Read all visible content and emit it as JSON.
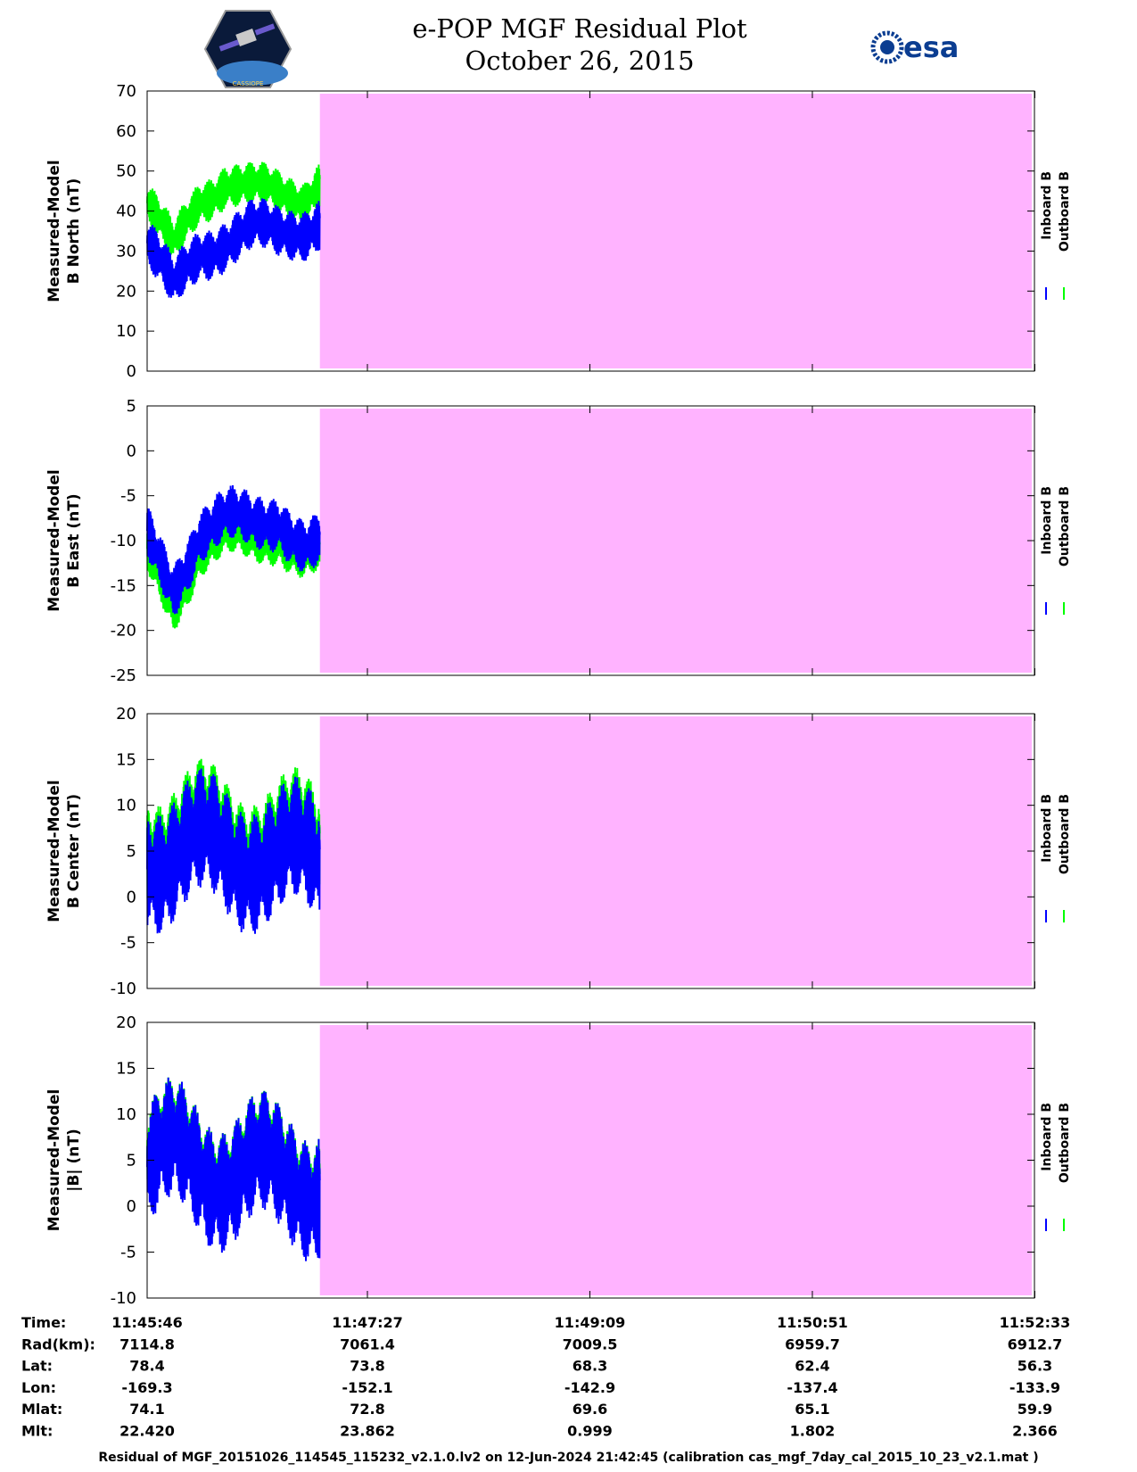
{
  "header": {
    "title_line1": "e-POP MGF Residual Plot",
    "title_line2": "October 26, 2015",
    "logo_left_text": "CASSIOPE",
    "logo_right_text": "esa"
  },
  "colors": {
    "inboard": "#0000ff",
    "outboard": "#00ff00",
    "no_data_fill": "#ffb3ff"
  },
  "chart_data": [
    {
      "type": "line",
      "name": "b-north",
      "ylabel_line1": "Measured-Model",
      "ylabel_line2": "B North (nT)",
      "ylim": [
        0,
        70
      ],
      "yticks": [
        0,
        10,
        20,
        30,
        40,
        50,
        60,
        70
      ],
      "legend": [
        "Inboard B",
        "Outboard B"
      ],
      "series": [
        {
          "name": "Inboard B",
          "x_min": [
            0,
            0.2,
            0.4,
            0.6,
            0.8,
            1.0,
            1.2,
            1.3
          ],
          "values": [
            32,
            20,
            30,
            33,
            35,
            34,
            36,
            38
          ]
        },
        {
          "name": "Outboard B",
          "x_min": [
            0,
            0.2,
            0.4,
            0.6,
            0.8,
            1.0,
            1.2,
            1.3
          ],
          "values": [
            42,
            30,
            43,
            48,
            45,
            44,
            44,
            48
          ]
        }
      ]
    },
    {
      "type": "line",
      "name": "b-east",
      "ylabel_line1": "Measured-Model",
      "ylabel_line2": "B East (nT)",
      "ylim": [
        -25,
        5
      ],
      "yticks": [
        -25,
        -20,
        -15,
        -10,
        -5,
        0,
        5
      ],
      "legend": [
        "Inboard B",
        "Outboard B"
      ],
      "series": [
        {
          "name": "Inboard B",
          "x_min": [
            0,
            0.2,
            0.4,
            0.6,
            0.8,
            1.0,
            1.2,
            1.3
          ],
          "values": [
            -10,
            -15,
            -9,
            -8,
            -8,
            -7,
            -11,
            -11
          ]
        },
        {
          "name": "Outboard B",
          "x_min": [
            0,
            0.2,
            0.4,
            0.6,
            0.8,
            1.0,
            1.2,
            1.3
          ],
          "values": [
            -12,
            -17,
            -11,
            -10,
            -10,
            -9,
            -12,
            -12
          ]
        }
      ]
    },
    {
      "type": "line",
      "name": "b-center",
      "ylabel_line1": "Measured-Model",
      "ylabel_line2": "B Center (nT)",
      "ylim": [
        -10,
        20
      ],
      "yticks": [
        -10,
        -5,
        0,
        5,
        10,
        15,
        20
      ],
      "legend": [
        "Inboard B",
        "Outboard B"
      ],
      "series": [
        {
          "name": "Inboard B",
          "x_min": [
            0,
            0.2,
            0.4,
            0.6,
            0.8,
            1.0,
            1.2,
            1.3
          ],
          "values": [
            5,
            5,
            5,
            5,
            5,
            4,
            4,
            4
          ]
        },
        {
          "name": "Outboard B",
          "x_min": [
            0,
            0.2,
            0.4,
            0.6,
            0.8,
            1.0,
            1.2,
            1.3
          ],
          "values": [
            7,
            7,
            7,
            7,
            7,
            6,
            6,
            6
          ]
        }
      ]
    },
    {
      "type": "line",
      "name": "b-total",
      "ylabel_line1": "Measured-Model",
      "ylabel_line2": "|B| (nT)",
      "ylim": [
        -10,
        20
      ],
      "yticks": [
        -10,
        -5,
        0,
        5,
        10,
        15,
        20
      ],
      "legend": [
        "Inboard B",
        "Outboard B"
      ],
      "series": [
        {
          "name": "Inboard B",
          "x_min": [
            0,
            0.2,
            0.4,
            0.6,
            0.8,
            1.0,
            1.2,
            1.3
          ],
          "values": [
            5,
            5,
            4,
            4,
            4,
            3,
            3,
            3
          ]
        },
        {
          "name": "Outboard B",
          "x_min": [
            0,
            0.2,
            0.4,
            0.6,
            0.8,
            1.0,
            1.2,
            1.3
          ],
          "values": [
            6,
            6,
            5,
            5,
            5,
            4,
            4,
            4
          ]
        }
      ]
    }
  ],
  "data_end_min": 1.32,
  "x_range_min": [
    0,
    6.78
  ],
  "xtick_min": [
    0,
    1.683,
    3.383,
    5.083,
    6.783
  ],
  "info_table": {
    "labels": [
      "Time:",
      "Rad(km):",
      "Lat:",
      "Lon:",
      "Mlat:",
      "Mlt:"
    ],
    "columns": [
      [
        "11:45:46",
        "7114.8",
        "78.4",
        "-169.3",
        "74.1",
        "22.420"
      ],
      [
        "11:47:27",
        "7061.4",
        "73.8",
        "-152.1",
        "72.8",
        "23.862"
      ],
      [
        "11:49:09",
        "7009.5",
        "68.3",
        "-142.9",
        "69.6",
        "0.999"
      ],
      [
        "11:50:51",
        "6959.7",
        "62.4",
        "-137.4",
        "65.1",
        "1.802"
      ],
      [
        "11:52:33",
        "6912.7",
        "56.3",
        "-133.9",
        "59.9",
        "2.366"
      ]
    ]
  },
  "footer": "Residual of MGF_20151026_114545_115232_v2.1.0.lv2 on 12-Jun-2024 21:42:45 (calibration cas_mgf_7day_cal_2015_10_23_v2.1.mat )"
}
